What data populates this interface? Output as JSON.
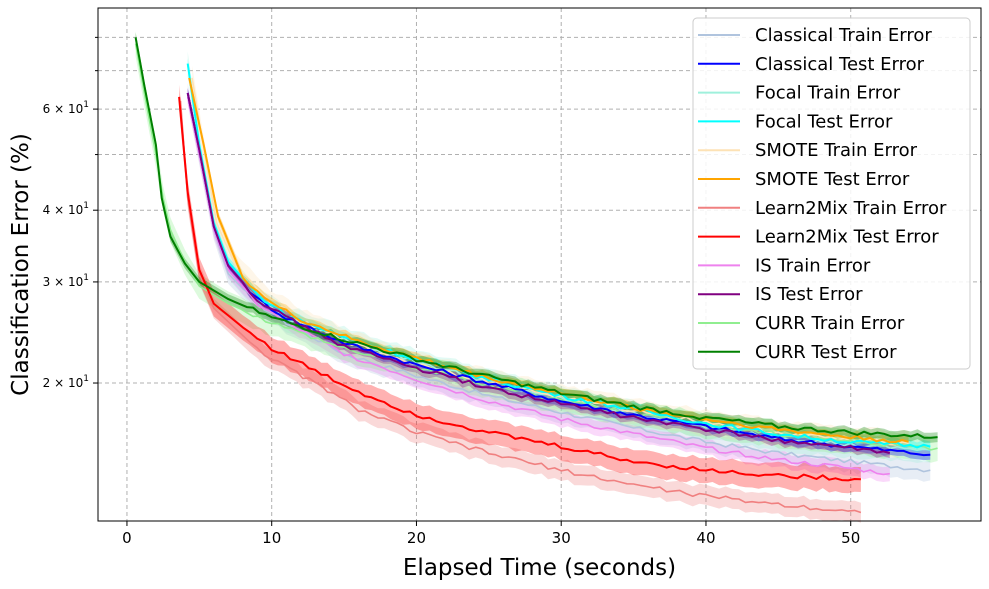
{
  "chart_data": {
    "type": "line",
    "title": "",
    "xlabel": "Elapsed Time (seconds)",
    "ylabel": "Classification Error (%)",
    "xlim": [
      -2,
      59
    ],
    "ylim": [
      11.5,
      90
    ],
    "yscale": "log",
    "grid": true,
    "legend_position": "top-right",
    "x_ticks": [
      0,
      10,
      20,
      30,
      40,
      50
    ],
    "y_major_ticks": [
      {
        "value": 20,
        "base": "2 × 10",
        "exp": "1"
      },
      {
        "value": 30,
        "base": "3 × 10",
        "exp": "1"
      },
      {
        "value": 40,
        "base": "4 × 10",
        "exp": "1"
      },
      {
        "value": 60,
        "base": "6 × 10",
        "exp": "1"
      }
    ],
    "y_minor_ticks": [
      50,
      70,
      80
    ],
    "series": [
      {
        "name": "Classical Train Error",
        "color": "#b0c4de",
        "role": "train",
        "band": 0.04,
        "points": [
          [
            4.2,
            64
          ],
          [
            5,
            50
          ],
          [
            6,
            37
          ],
          [
            7,
            31
          ],
          [
            9,
            27.5
          ],
          [
            11,
            25.5
          ],
          [
            15,
            22.5
          ],
          [
            20,
            20.6
          ],
          [
            25,
            19
          ],
          [
            30,
            17.8
          ],
          [
            35,
            16.7
          ],
          [
            40,
            15.8
          ],
          [
            45,
            15.1
          ],
          [
            50,
            14.6
          ],
          [
            55.5,
            14.1
          ]
        ]
      },
      {
        "name": "Classical Test Error",
        "color": "#0000ff",
        "role": "test",
        "band": 0.02,
        "points": [
          [
            4.2,
            64
          ],
          [
            5,
            51
          ],
          [
            6,
            37.5
          ],
          [
            7,
            32
          ],
          [
            9,
            28
          ],
          [
            11,
            26
          ],
          [
            15,
            23.5
          ],
          [
            20,
            21.5
          ],
          [
            25,
            20
          ],
          [
            30,
            18.6
          ],
          [
            35,
            17.6
          ],
          [
            40,
            16.8
          ],
          [
            45,
            16
          ],
          [
            50,
            15.5
          ],
          [
            55.5,
            15
          ]
        ]
      },
      {
        "name": "Focal Train Error",
        "color": "#9ff0dc",
        "role": "train",
        "band": 0.05,
        "points": [
          [
            4.2,
            72
          ],
          [
            5,
            52
          ],
          [
            6,
            38
          ],
          [
            7,
            32
          ],
          [
            9,
            28
          ],
          [
            11,
            26
          ],
          [
            15,
            23.8
          ],
          [
            20,
            21.8
          ],
          [
            25,
            20.1
          ],
          [
            30,
            18.8
          ],
          [
            35,
            17.7
          ],
          [
            40,
            16.8
          ],
          [
            45,
            16.1
          ],
          [
            50,
            15.6
          ],
          [
            55.5,
            15.3
          ]
        ]
      },
      {
        "name": "Focal Test Error",
        "color": "#00ffff",
        "role": "test",
        "band": 0.02,
        "points": [
          [
            4.2,
            72
          ],
          [
            5,
            52
          ],
          [
            6,
            38
          ],
          [
            7,
            32.5
          ],
          [
            9,
            28.5
          ],
          [
            11,
            26.3
          ],
          [
            15,
            24
          ],
          [
            20,
            22
          ],
          [
            25,
            20.3
          ],
          [
            30,
            19
          ],
          [
            35,
            18
          ],
          [
            40,
            17
          ],
          [
            45,
            16.3
          ],
          [
            50,
            15.8
          ],
          [
            55.5,
            15.5
          ]
        ]
      },
      {
        "name": "SMOTE Train Error",
        "color": "#fde2b5",
        "role": "train",
        "band": 0.05,
        "points": [
          [
            4.5,
            68
          ],
          [
            5.2,
            53
          ],
          [
            6.2,
            38
          ],
          [
            7.5,
            32
          ],
          [
            9.5,
            28.2
          ],
          [
            12,
            25.6
          ],
          [
            16,
            23.2
          ],
          [
            20,
            21.6
          ],
          [
            25,
            20.1
          ],
          [
            30,
            18.9
          ],
          [
            35,
            17.9
          ],
          [
            40,
            17.1
          ],
          [
            45,
            16.4
          ],
          [
            50,
            15.9
          ],
          [
            54,
            15.7
          ]
        ]
      },
      {
        "name": "SMOTE Test Error",
        "color": "#ffa500",
        "role": "test",
        "band": 0.02,
        "points": [
          [
            4.3,
            68
          ],
          [
            5.3,
            52
          ],
          [
            6.3,
            39
          ],
          [
            8,
            30.5
          ],
          [
            10,
            27.5
          ],
          [
            12,
            25.8
          ],
          [
            16,
            23.6
          ],
          [
            20,
            22.1
          ],
          [
            25,
            20.4
          ],
          [
            30,
            19.2
          ],
          [
            35,
            18.1
          ],
          [
            40,
            17.3
          ],
          [
            45,
            16.6
          ],
          [
            50,
            16.1
          ],
          [
            54,
            15.8
          ]
        ]
      },
      {
        "name": "Learn2Mix Train Error",
        "color": "#f08080",
        "role": "train",
        "band": 0.04,
        "points": [
          [
            3.7,
            62
          ],
          [
            4.2,
            42
          ],
          [
            5,
            31
          ],
          [
            6,
            27
          ],
          [
            8,
            24.2
          ],
          [
            10,
            22
          ],
          [
            13,
            20
          ],
          [
            16,
            18
          ],
          [
            20,
            16.4
          ],
          [
            25,
            15.1
          ],
          [
            30,
            14.1
          ],
          [
            35,
            13.3
          ],
          [
            40,
            12.7
          ],
          [
            45,
            12.3
          ],
          [
            50.7,
            11.9
          ]
        ]
      },
      {
        "name": "Learn2Mix Test Error",
        "color": "#ff0000",
        "role": "test",
        "band": 0.05,
        "points": [
          [
            3.6,
            63
          ],
          [
            4.2,
            43
          ],
          [
            5,
            31.5
          ],
          [
            6,
            27.5
          ],
          [
            8,
            25
          ],
          [
            10,
            23
          ],
          [
            13,
            21
          ],
          [
            16,
            19.3
          ],
          [
            20,
            17.6
          ],
          [
            25,
            16.4
          ],
          [
            30,
            15.5
          ],
          [
            35,
            14.6
          ],
          [
            40,
            14.1
          ],
          [
            45,
            13.8
          ],
          [
            50.7,
            13.6
          ]
        ]
      },
      {
        "name": "IS Train Error",
        "color": "#ee82ee",
        "role": "train",
        "band": 0.03,
        "points": [
          [
            4.2,
            63
          ],
          [
            5,
            50
          ],
          [
            6,
            37
          ],
          [
            7,
            31.5
          ],
          [
            9,
            27.5
          ],
          [
            11,
            25.5
          ],
          [
            15,
            22.5
          ],
          [
            20,
            20.3
          ],
          [
            25,
            18.6
          ],
          [
            30,
            17.3
          ],
          [
            35,
            16.3
          ],
          [
            40,
            15.4
          ],
          [
            45,
            14.7
          ],
          [
            50,
            14.2
          ],
          [
            52.7,
            13.9
          ]
        ]
      },
      {
        "name": "IS Test Error",
        "color": "#800080",
        "role": "test",
        "band": 0.02,
        "points": [
          [
            4.2,
            64
          ],
          [
            5,
            51
          ],
          [
            6,
            37.5
          ],
          [
            7,
            32
          ],
          [
            9,
            28
          ],
          [
            11,
            26
          ],
          [
            15,
            23.2
          ],
          [
            20,
            21.2
          ],
          [
            25,
            19.6
          ],
          [
            30,
            18.4
          ],
          [
            35,
            17.4
          ],
          [
            40,
            16.6
          ],
          [
            45,
            15.9
          ],
          [
            50,
            15.4
          ],
          [
            52.7,
            15.1
          ]
        ]
      },
      {
        "name": "CURR Train Error",
        "color": "#90ee90",
        "role": "train",
        "band": 0.05,
        "points": [
          [
            0.6,
            78
          ],
          [
            1.2,
            64
          ],
          [
            2,
            50
          ],
          [
            2.5,
            42
          ],
          [
            3,
            37
          ],
          [
            4,
            32.5
          ],
          [
            5,
            29.5
          ],
          [
            7,
            27.5
          ],
          [
            10,
            25.5
          ],
          [
            15,
            23
          ],
          [
            20,
            21.3
          ],
          [
            25,
            19.8
          ],
          [
            30,
            18.7
          ],
          [
            35,
            17.7
          ],
          [
            40,
            16.9
          ],
          [
            45,
            16.3
          ],
          [
            50,
            15.8
          ],
          [
            56,
            15.4
          ]
        ]
      },
      {
        "name": "CURR Test Error",
        "color": "#008000",
        "role": "test",
        "band": 0.02,
        "points": [
          [
            0.6,
            80
          ],
          [
            1.2,
            66
          ],
          [
            2,
            52
          ],
          [
            2.4,
            42
          ],
          [
            3,
            36
          ],
          [
            4,
            32.3
          ],
          [
            5,
            30
          ],
          [
            7,
            28
          ],
          [
            10,
            26
          ],
          [
            15,
            23.8
          ],
          [
            20,
            22
          ],
          [
            25,
            20.5
          ],
          [
            30,
            19.2
          ],
          [
            35,
            18.2
          ],
          [
            40,
            17.4
          ],
          [
            45,
            16.8
          ],
          [
            50,
            16.4
          ],
          [
            56,
            16.1
          ]
        ]
      }
    ]
  }
}
